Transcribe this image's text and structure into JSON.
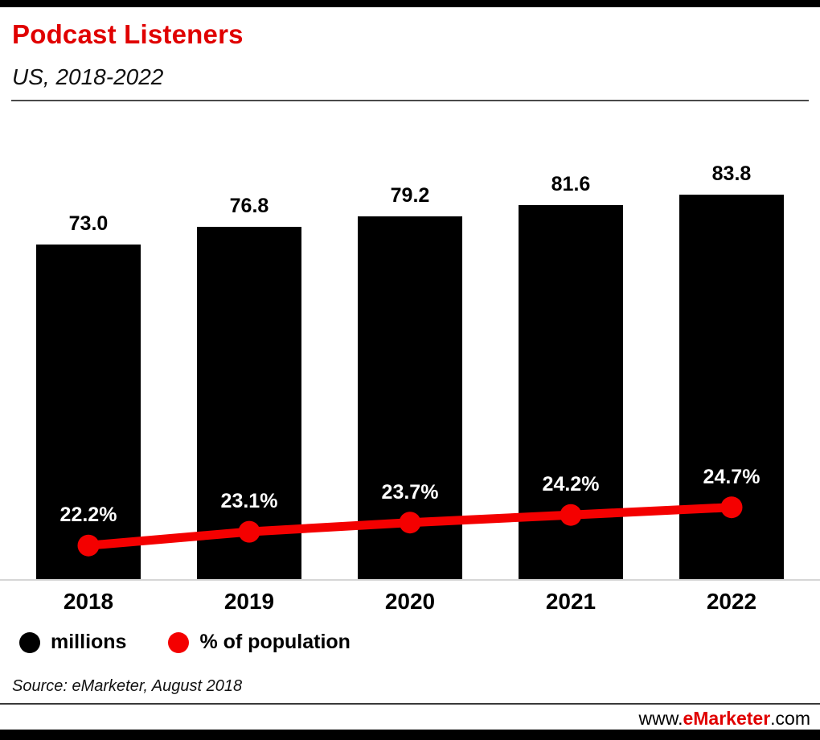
{
  "header": {
    "title": "Podcast Listeners",
    "subtitle": "US, 2018-2022"
  },
  "chart_data": {
    "type": "bar",
    "categories": [
      "2018",
      "2019",
      "2020",
      "2021",
      "2022"
    ],
    "series": [
      {
        "name": "millions",
        "type": "bar",
        "color": "#000000",
        "values": [
          73.0,
          76.8,
          79.2,
          81.6,
          83.8
        ],
        "labels": [
          "73.0",
          "76.8",
          "79.2",
          "81.6",
          "83.8"
        ]
      },
      {
        "name": "% of population",
        "type": "line",
        "color": "#f40000",
        "values": [
          22.2,
          23.1,
          23.7,
          24.2,
          24.7
        ],
        "labels": [
          "22.2%",
          "23.1%",
          "23.7%",
          "24.2%",
          "24.7%"
        ]
      }
    ],
    "ylim": [
      0,
      100
    ],
    "y2lim": [
      20,
      50
    ],
    "grid": false,
    "legend_position": "bottom"
  },
  "legend": {
    "items": [
      {
        "label": "millions",
        "color": "#000000"
      },
      {
        "label": "% of population",
        "color": "#f40000"
      }
    ]
  },
  "source": "Source: eMarketer, August 2018",
  "footer": {
    "www": "www.",
    "brand": "eMarketer",
    "com": ".com"
  },
  "colors": {
    "accent_red": "#e00000",
    "bar_black": "#000000",
    "line_red": "#f40000"
  }
}
